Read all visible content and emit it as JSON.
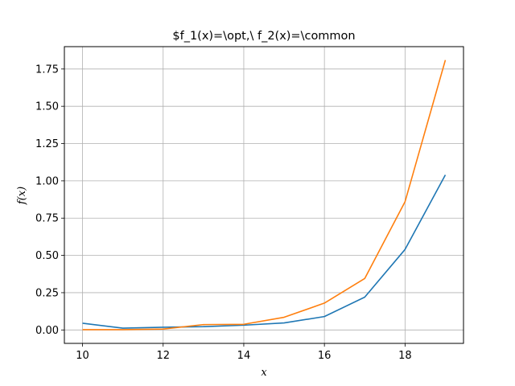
{
  "chart_data": {
    "type": "line",
    "title": "$f_1(x)=\\opt,\\ f_2(x)=\\common",
    "xlabel": "x",
    "ylabel": "f(x)",
    "x": [
      10,
      11,
      12,
      13,
      14,
      15,
      16,
      17,
      18,
      19
    ],
    "xlim": [
      9.55,
      19.45
    ],
    "ylim": [
      -0.09,
      1.9
    ],
    "xticks": [
      10,
      12,
      14,
      16,
      18
    ],
    "xtick_labels": [
      "10",
      "12",
      "14",
      "16",
      "18"
    ],
    "yticks": [
      0,
      0.25,
      0.5,
      0.75,
      1.0,
      1.25,
      1.5,
      1.75
    ],
    "ytick_labels": [
      "0.00",
      "0.25",
      "0.50",
      "0.75",
      "1.00",
      "1.25",
      "1.50",
      "1.75"
    ],
    "grid": true,
    "series": [
      {
        "values": [
          0.045,
          0.012,
          0.018,
          0.022,
          0.032,
          0.047,
          0.09,
          0.22,
          0.54,
          1.04
        ],
        "color": "#1f77b4"
      },
      {
        "values": [
          0.002,
          0.002,
          0.006,
          0.036,
          0.038,
          0.085,
          0.18,
          0.345,
          0.86,
          1.81
        ],
        "color": "#ff7f0e"
      }
    ]
  }
}
